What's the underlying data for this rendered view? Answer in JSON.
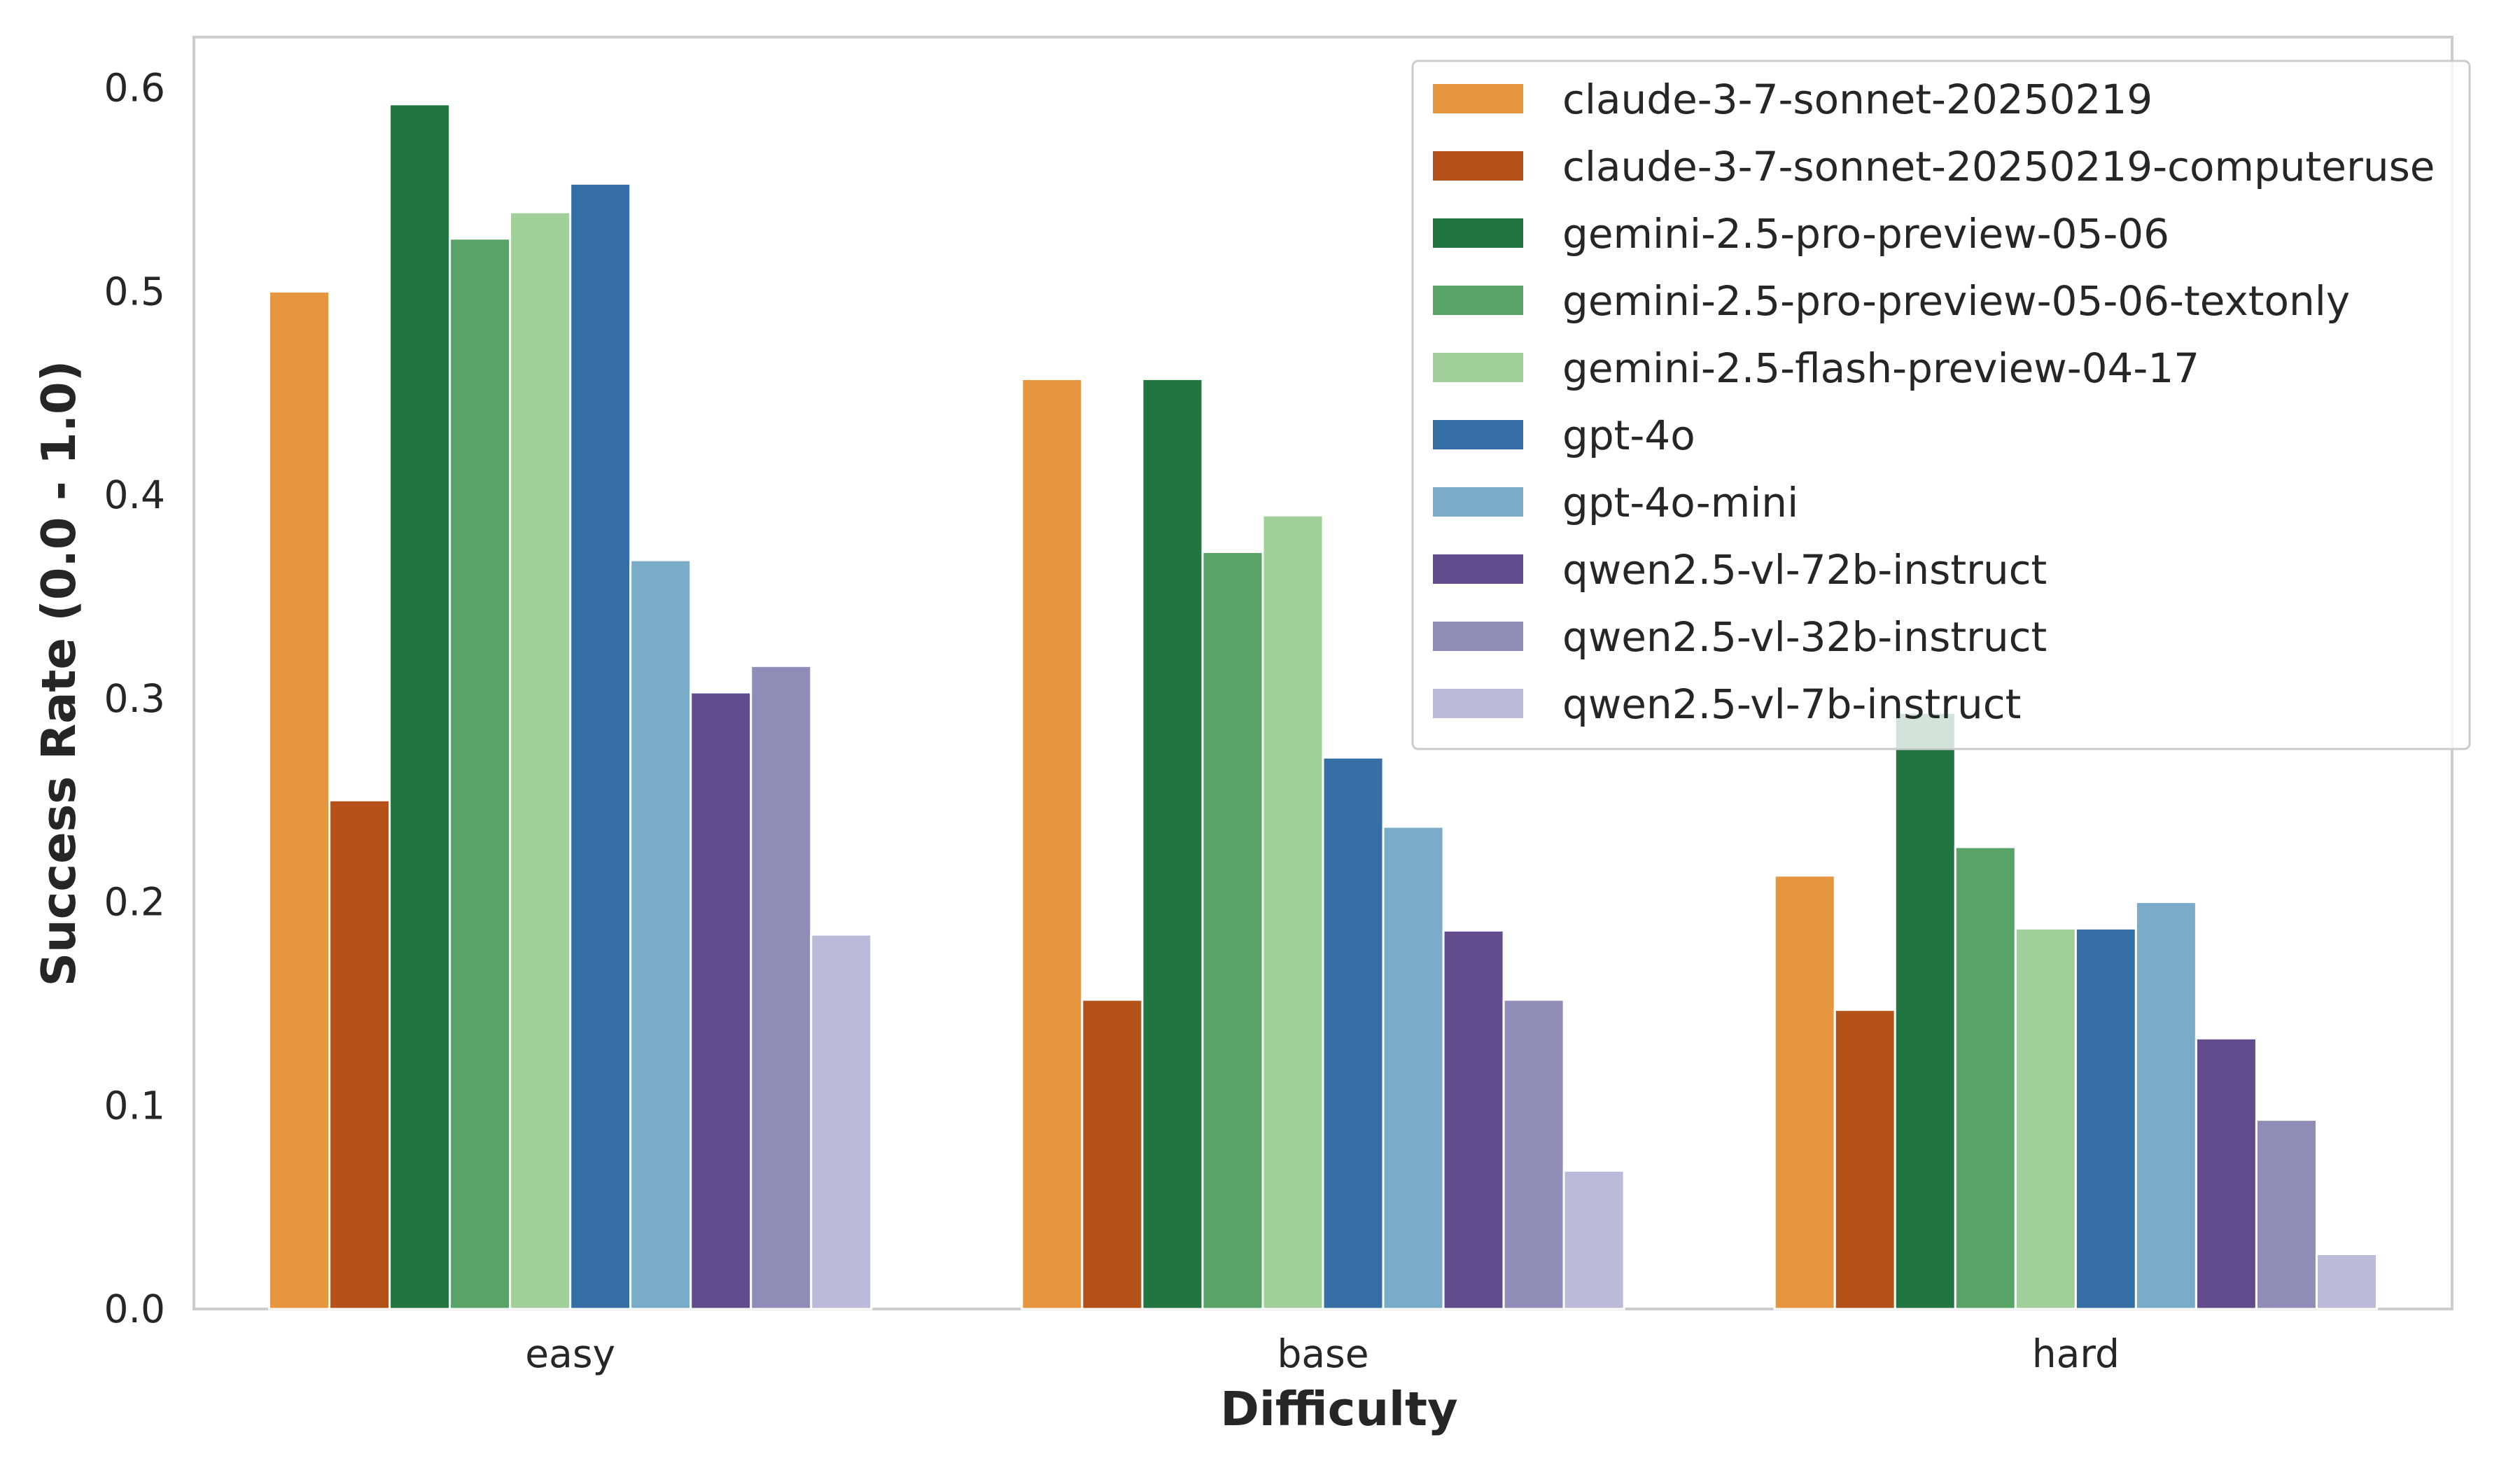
{
  "chart_data": {
    "type": "bar",
    "title": "",
    "xlabel": "Difficulty",
    "ylabel": "Success Rate (0.0 - 1.0)",
    "ylim": [
      0,
      0.625
    ],
    "yticks": [
      "0.0",
      "0.1",
      "0.2",
      "0.3",
      "0.4",
      "0.5",
      "0.6"
    ],
    "ytick_values": [
      0,
      0.1,
      0.2,
      0.3,
      0.4,
      0.5,
      0.6
    ],
    "grid": false,
    "legend_position": "top-right",
    "categories": [
      "easy",
      "base",
      "hard"
    ],
    "series": [
      {
        "name": "claude-3-7-sonnet-20250219",
        "color": "#e5963f",
        "values": [
          0.5,
          0.457,
          0.213
        ]
      },
      {
        "name": "claude-3-7-sonnet-20250219-computeruse",
        "color": "#b5521a",
        "values": [
          0.25,
          0.152,
          0.147
        ]
      },
      {
        "name": "gemini-2.5-pro-preview-05-06",
        "color": "#217541",
        "values": [
          0.592,
          0.457,
          0.293
        ]
      },
      {
        "name": "gemini-2.5-pro-preview-05-06-textonly",
        "color": "#57a368",
        "values": [
          0.526,
          0.372,
          0.227
        ]
      },
      {
        "name": "gemini-2.5-flash-preview-04-17",
        "color": "#a0cf9a",
        "values": [
          0.539,
          0.39,
          0.187
        ]
      },
      {
        "name": "gpt-4o",
        "color": "#346ea4",
        "values": [
          0.553,
          0.271,
          0.187
        ]
      },
      {
        "name": "gpt-4o-mini",
        "color": "#7aabc9",
        "values": [
          0.368,
          0.237,
          0.2
        ]
      },
      {
        "name": "qwen2.5-vl-72b-instruct",
        "color": "#634c8e",
        "values": [
          0.303,
          0.186,
          0.133
        ]
      },
      {
        "name": "qwen2.5-vl-32b-instruct",
        "color": "#8f8cb8",
        "values": [
          0.316,
          0.152,
          0.093
        ]
      },
      {
        "name": "qwen2.5-vl-7b-instruct",
        "color": "#bbbad8",
        "values": [
          0.184,
          0.068,
          0.027
        ]
      }
    ]
  }
}
